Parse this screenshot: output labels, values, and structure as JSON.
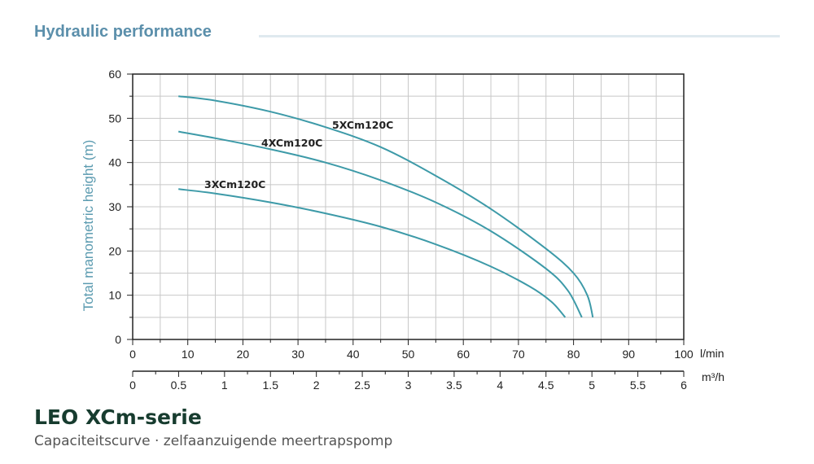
{
  "header": {
    "title": "Hydraulic performance"
  },
  "footer": {
    "title": "LEO XCm-serie",
    "subtitle": "Capaciteitscurve · zelfaanzuigende meertrapspomp"
  },
  "chart_data": {
    "type": "line",
    "ylabel": "Total manometric height (m)",
    "x_unit": "l/min",
    "x2_unit": "m³/h",
    "xlim": [
      0,
      100
    ],
    "ylim": [
      0,
      60
    ],
    "x_ticks": [
      "0",
      "10",
      "20",
      "30",
      "40",
      "50",
      "60",
      "70",
      "80",
      "90",
      "100"
    ],
    "y_ticks": [
      "0",
      "10",
      "20",
      "30",
      "40",
      "50",
      "60"
    ],
    "x2_ticks": [
      "0",
      "0.5",
      "1",
      "1.5",
      "2",
      "2.5",
      "3",
      "3.5",
      "4",
      "4.5",
      "5",
      "5.5",
      "6"
    ],
    "grid": true,
    "colors": {
      "curve": "#3d9aa8",
      "axis_label": "#5b9bb0"
    },
    "series": [
      {
        "name": "5XCm120C",
        "x": [
          8.3,
          15,
          25,
          35,
          45,
          55,
          65,
          75,
          80,
          82.5,
          83.5
        ],
        "y": [
          55,
          54,
          51.5,
          48,
          43.5,
          37,
          29.5,
          20.5,
          15,
          10,
          5
        ]
      },
      {
        "name": "4XCm120C",
        "x": [
          8.3,
          15,
          25,
          35,
          45,
          55,
          65,
          75,
          79,
          81.5
        ],
        "y": [
          47,
          45.5,
          43,
          40,
          36,
          31,
          24.5,
          16,
          11,
          5
        ]
      },
      {
        "name": "3XCm120C",
        "x": [
          8.3,
          15,
          25,
          35,
          45,
          55,
          65,
          72,
          76,
          78.5
        ],
        "y": [
          34,
          33,
          31,
          28.5,
          25.5,
          21.5,
          16.5,
          12,
          8.5,
          5
        ]
      }
    ]
  }
}
